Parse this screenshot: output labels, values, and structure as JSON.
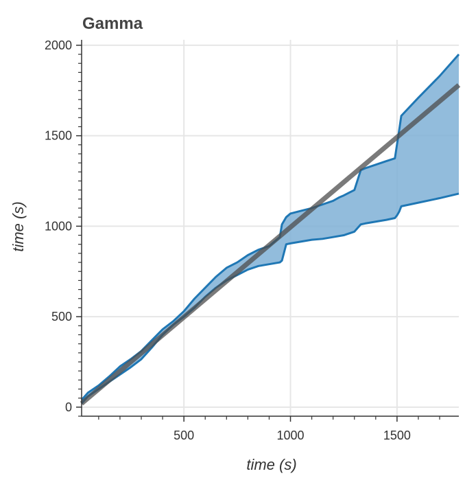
{
  "chart_data": {
    "type": "area",
    "title": "Gamma",
    "xlabel": "time (s)",
    "ylabel": "time (s)",
    "xlim": [
      20,
      1790
    ],
    "ylim": [
      -50,
      2030
    ],
    "grid": true,
    "legend": "none",
    "x_major_ticks": [
      500,
      1000,
      1500
    ],
    "x_tick_labels": [
      "500",
      "1000",
      "1500"
    ],
    "x_minor_ticks": [
      100,
      200,
      300,
      400,
      600,
      700,
      800,
      900,
      1100,
      1200,
      1300,
      1400,
      1600,
      1700
    ],
    "y_major_ticks": [
      0,
      500,
      1000,
      1500,
      2000
    ],
    "y_tick_labels": [
      "0",
      "500",
      "1000",
      "1500",
      "2000"
    ],
    "y_minor_ticks": [
      -50,
      50,
      100,
      150,
      200,
      250,
      300,
      350,
      400,
      450,
      550,
      600,
      650,
      700,
      750,
      800,
      850,
      900,
      950,
      1050,
      1100,
      1150,
      1200,
      1250,
      1300,
      1350,
      1400,
      1450,
      1550,
      1600,
      1650,
      1700,
      1750,
      1800,
      1850,
      1900,
      1950
    ],
    "colors": {
      "band_fill": "#7fb0d6",
      "band_edge": "#1f77b4",
      "reference": "#4d4d4d",
      "grid": "#e6e6e6"
    },
    "series": [
      {
        "name": "upper",
        "x": [
          20,
          50,
          100,
          150,
          200,
          250,
          300,
          350,
          400,
          450,
          500,
          550,
          600,
          650,
          700,
          750,
          800,
          850,
          900,
          930,
          950,
          960,
          980,
          1000,
          1050,
          1100,
          1150,
          1200,
          1230,
          1250,
          1300,
          1330,
          1350,
          1400,
          1450,
          1490,
          1510,
          1520,
          1600,
          1700,
          1790
        ],
        "y": [
          40,
          80,
          120,
          170,
          225,
          265,
          310,
          370,
          430,
          475,
          530,
          600,
          660,
          720,
          770,
          800,
          840,
          870,
          890,
          920,
          940,
          1010,
          1050,
          1070,
          1085,
          1100,
          1120,
          1140,
          1160,
          1170,
          1200,
          1310,
          1320,
          1340,
          1360,
          1375,
          1530,
          1610,
          1710,
          1830,
          1950
        ]
      },
      {
        "name": "lower",
        "x": [
          20,
          50,
          100,
          150,
          200,
          250,
          300,
          350,
          400,
          450,
          500,
          550,
          600,
          650,
          700,
          750,
          800,
          850,
          900,
          950,
          960,
          980,
          1000,
          1050,
          1100,
          1150,
          1200,
          1250,
          1300,
          1330,
          1350,
          1400,
          1450,
          1490,
          1500,
          1510,
          1520,
          1600,
          1700,
          1790
        ],
        "y": [
          20,
          60,
          100,
          140,
          180,
          220,
          265,
          330,
          400,
          455,
          500,
          550,
          610,
          660,
          700,
          730,
          760,
          780,
          790,
          800,
          810,
          900,
          905,
          915,
          925,
          930,
          940,
          950,
          970,
          1010,
          1015,
          1025,
          1035,
          1045,
          1060,
          1080,
          1110,
          1130,
          1155,
          1180
        ]
      },
      {
        "name": "reference",
        "x": [
          20,
          1790
        ],
        "y": [
          20,
          1780
        ]
      }
    ]
  }
}
